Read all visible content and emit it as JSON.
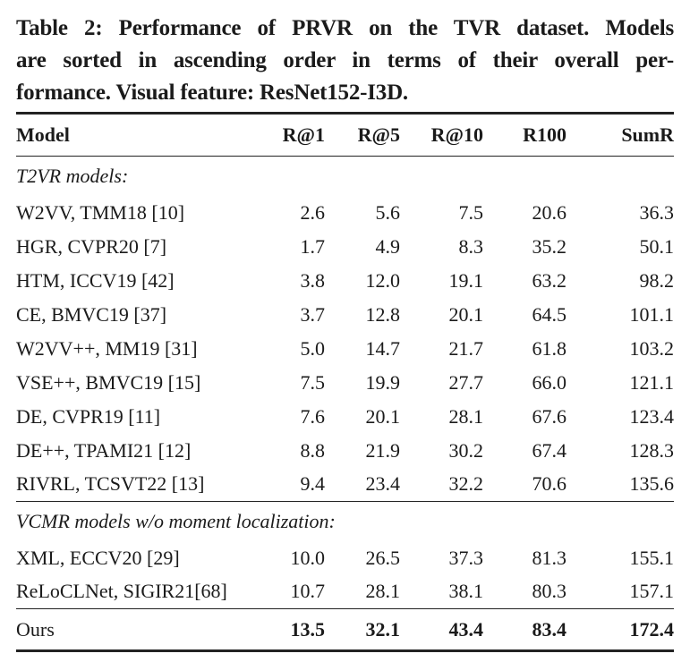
{
  "caption": {
    "lines": [
      "Table 2: Performance of PRVR on the TVR dataset. Models",
      "are sorted in ascending order in terms of their overall per-",
      "formance. Visual feature: ResNet152-I3D."
    ]
  },
  "table": {
    "columns": [
      "Model",
      "R@1",
      "R@5",
      "R@10",
      "R100",
      "SumR"
    ],
    "sections": [
      {
        "header": "T2VR models:",
        "rows": [
          {
            "model": "W2VV, TMM18 [10]",
            "values": [
              "2.6",
              "5.6",
              "7.5",
              "20.6",
              "36.3"
            ]
          },
          {
            "model": "HGR, CVPR20 [7]",
            "values": [
              "1.7",
              "4.9",
              "8.3",
              "35.2",
              "50.1"
            ]
          },
          {
            "model": "HTM, ICCV19 [42]",
            "values": [
              "3.8",
              "12.0",
              "19.1",
              "63.2",
              "98.2"
            ]
          },
          {
            "model": "CE, BMVC19 [37]",
            "values": [
              "3.7",
              "12.8",
              "20.1",
              "64.5",
              "101.1"
            ]
          },
          {
            "model": "W2VV++, MM19 [31]",
            "values": [
              "5.0",
              "14.7",
              "21.7",
              "61.8",
              "103.2"
            ]
          },
          {
            "model": "VSE++, BMVC19 [15]",
            "values": [
              "7.5",
              "19.9",
              "27.7",
              "66.0",
              "121.1"
            ]
          },
          {
            "model": "DE, CVPR19 [11]",
            "values": [
              "7.6",
              "20.1",
              "28.1",
              "67.6",
              "123.4"
            ]
          },
          {
            "model": "DE++, TPAMI21 [12]",
            "values": [
              "8.8",
              "21.9",
              "30.2",
              "67.4",
              "128.3"
            ]
          },
          {
            "model": "RIVRL, TCSVT22 [13]",
            "values": [
              "9.4",
              "23.4",
              "32.2",
              "70.6",
              "135.6"
            ]
          }
        ]
      },
      {
        "header": "VCMR models w/o moment localization:",
        "rows": [
          {
            "model": "XML, ECCV20 [29]",
            "values": [
              "10.0",
              "26.5",
              "37.3",
              "81.3",
              "155.1"
            ]
          },
          {
            "model": "ReLoCLNet, SIGIR21[68]",
            "values": [
              "10.7",
              "28.1",
              "38.1",
              "80.3",
              "157.1"
            ]
          }
        ]
      }
    ],
    "final_row": {
      "model": "Ours",
      "values": [
        "13.5",
        "32.1",
        "43.4",
        "83.4",
        "172.4"
      ]
    }
  }
}
